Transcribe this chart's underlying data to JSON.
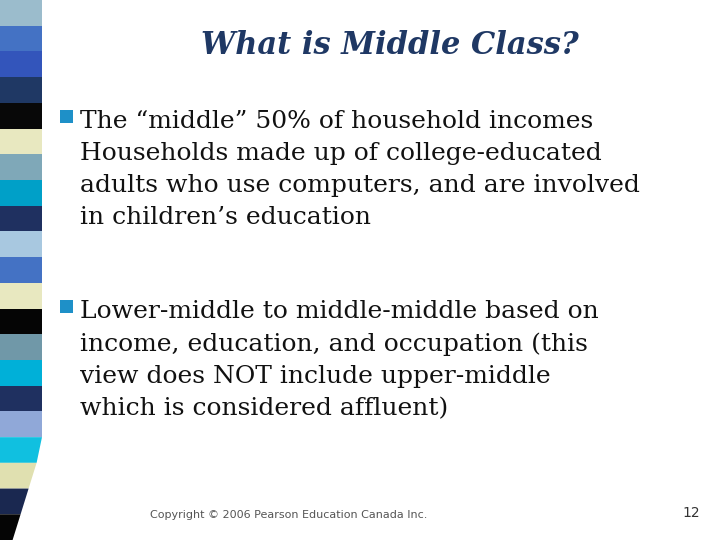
{
  "title": "What is Middle Class?",
  "title_color": "#1F3864",
  "title_fontsize": 22,
  "background_color": "#FFFFFF",
  "bullet_color": "#1E90C8",
  "bullet1_line1": "The “middle” 50% of household incomes",
  "bullet1_line2": "Households made up of college-educated",
  "bullet1_line3": "adults who use computers, and are involved",
  "bullet1_line4": "in children’s education",
  "bullet2_line1": "Lower-middle to middle-middle based on",
  "bullet2_line2": "income, education, and occupation (this",
  "bullet2_line3": "view does NOT include upper-middle",
  "bullet2_line4": "which is considered affluent)",
  "footer": "Copyright © 2006 Pearson Education Canada Inc.",
  "page_number": "12",
  "footer_fontsize": 8,
  "body_fontsize": 18,
  "sidebar_colors": [
    "#9BBCCC",
    "#4472C4",
    "#3355BB",
    "#1F3864",
    "#080808",
    "#E8E8C0",
    "#7FA8B8",
    "#00A0C8",
    "#1F3060",
    "#A8C8E0",
    "#4472C4",
    "#E8E8C0",
    "#050505",
    "#7098A8",
    "#00B0D8",
    "#1F3060",
    "#90A8D8",
    "#10C0E0",
    "#E0E0B0",
    "#1A2850",
    "#050505"
  ]
}
